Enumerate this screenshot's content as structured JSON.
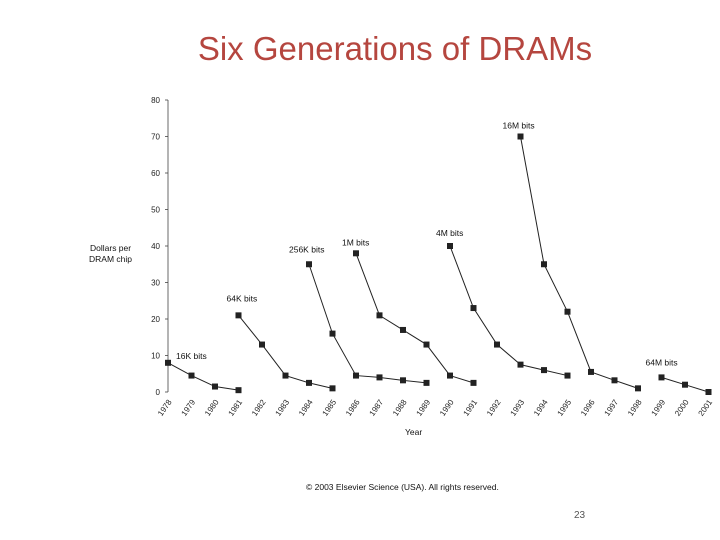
{
  "slide": {
    "title": "Six Generations of DRAMs",
    "copyright": "© 2003 Elsevier Science (USA). All rights reserved.",
    "page_number": "23"
  },
  "chart_data": {
    "type": "line",
    "ylabel_lines": [
      "Dollars per",
      "DRAM chip"
    ],
    "xlabel": "Year",
    "x_categories": [
      "1978",
      "1979",
      "1980",
      "1981",
      "1982",
      "1983",
      "1984",
      "1985",
      "1986",
      "1987",
      "1988",
      "1989",
      "1990",
      "1991",
      "1992",
      "1993",
      "1994",
      "1995",
      "1996",
      "1997",
      "1998",
      "1999",
      "2000",
      "2001"
    ],
    "ylim": [
      0,
      80
    ],
    "yticks": [
      0,
      10,
      20,
      30,
      40,
      50,
      60,
      70,
      80
    ],
    "marker_color": "#222222",
    "series": [
      {
        "name": "16K bits",
        "points": [
          [
            1978,
            8
          ],
          [
            1979,
            4.5
          ],
          [
            1980,
            1.5
          ],
          [
            1981,
            0.5
          ]
        ]
      },
      {
        "name": "64K bits",
        "points": [
          [
            1981,
            21
          ],
          [
            1982,
            13
          ],
          [
            1983,
            4.5
          ],
          [
            1984,
            2.5
          ],
          [
            1985,
            1
          ]
        ]
      },
      {
        "name": "256K bits",
        "points": [
          [
            1984,
            35
          ],
          [
            1985,
            16
          ],
          [
            1986,
            4.5
          ],
          [
            1987,
            4
          ],
          [
            1988,
            3.2
          ],
          [
            1989,
            2.5
          ]
        ]
      },
      {
        "name": "1M bits",
        "points": [
          [
            1986,
            38
          ],
          [
            1987,
            21
          ],
          [
            1988,
            17
          ],
          [
            1989,
            13
          ],
          [
            1990,
            4.5
          ],
          [
            1991,
            2.5
          ]
        ]
      },
      {
        "name": "4M bits",
        "points": [
          [
            1990,
            40
          ],
          [
            1991,
            23
          ],
          [
            1992,
            13
          ],
          [
            1993,
            7.5
          ],
          [
            1994,
            6
          ],
          [
            1995,
            4.5
          ]
        ]
      },
      {
        "name": "16M bits",
        "points": [
          [
            1993,
            70
          ],
          [
            1994,
            35
          ],
          [
            1995,
            22
          ],
          [
            1996,
            5.5
          ],
          [
            1997,
            3.2
          ],
          [
            1998,
            1
          ]
        ]
      },
      {
        "name": "64M bits",
        "points": [
          [
            1999,
            4
          ],
          [
            2000,
            2
          ],
          [
            2001,
            0
          ]
        ]
      }
    ]
  }
}
